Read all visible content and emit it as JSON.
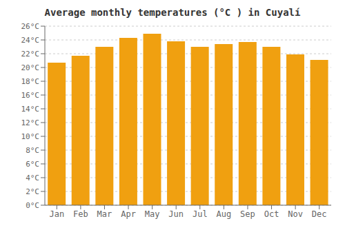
{
  "chart_data": {
    "type": "bar",
    "title": "Average monthly temperatures (°C ) in Cuyalí",
    "categories": [
      "Jan",
      "Feb",
      "Mar",
      "Apr",
      "May",
      "Jun",
      "Jul",
      "Aug",
      "Sep",
      "Oct",
      "Nov",
      "Dec"
    ],
    "values": [
      20.7,
      21.7,
      23.0,
      24.3,
      24.9,
      23.8,
      23.0,
      23.4,
      23.7,
      23.0,
      21.9,
      21.1
    ],
    "color": "#F0A010",
    "ylim": [
      0,
      26
    ],
    "yticks": [
      {
        "value": 0,
        "label": "0°C"
      },
      {
        "value": 2,
        "label": "2°C"
      },
      {
        "value": 4,
        "label": "4°C"
      },
      {
        "value": 6,
        "label": "6°C"
      },
      {
        "value": 8,
        "label": "8°C"
      },
      {
        "value": 10,
        "label": "10°C"
      },
      {
        "value": 12,
        "label": "12°C"
      },
      {
        "value": 14,
        "label": "14°C"
      },
      {
        "value": 16,
        "label": "16°C"
      },
      {
        "value": 18,
        "label": "18°C"
      },
      {
        "value": 20,
        "label": "20°C"
      },
      {
        "value": 22,
        "label": "22°C"
      },
      {
        "value": 24,
        "label": "24°C"
      },
      {
        "value": 26,
        "label": "26°C"
      }
    ],
    "grid": true
  }
}
